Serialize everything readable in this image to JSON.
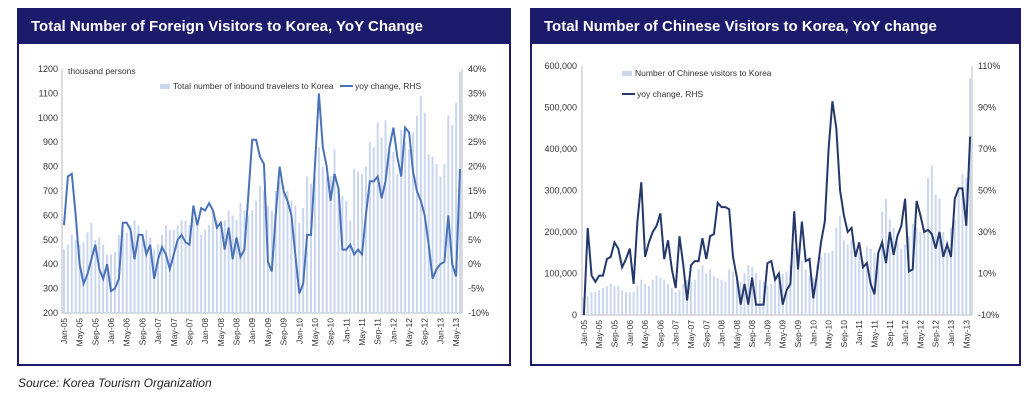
{
  "source": "Source: Korea Tourism Organization",
  "chart_data": [
    {
      "type": "bar+line",
      "title": "Total Number of Foreign Visitors to Korea, YoY Change",
      "unit_label": "thousand persons",
      "bar_series": "Total number of inbound travelers to Korea",
      "line_series": "yoy change, RHS",
      "ylim": [
        200,
        1200
      ],
      "yticks": [
        "1200",
        "1100",
        "1000",
        "900",
        "800",
        "700",
        "600",
        "500",
        "400",
        "300",
        "200"
      ],
      "y2lim": [
        -10,
        40
      ],
      "y2ticks": [
        "40%",
        "35%",
        "30%",
        "25%",
        "20%",
        "15%",
        "10%",
        "5%",
        "0%",
        "-5%",
        "-10%"
      ],
      "xticks": [
        "Jan-05",
        "May-05",
        "Sep-05",
        "Jan-06",
        "May-06",
        "Sep-06",
        "Jan-07",
        "May-07",
        "Sep-07",
        "Jan-08",
        "May-08",
        "Sep-08",
        "Jan-09",
        "May-09",
        "Sep-09",
        "Jan-10",
        "May-10",
        "Sep-10",
        "Jan-11",
        "May-11",
        "Sep-11",
        "Jan-12",
        "May-12",
        "Sep-12",
        "Jan-13",
        "May-13"
      ],
      "bars": [
        460,
        480,
        520,
        500,
        480,
        490,
        530,
        570,
        500,
        510,
        480,
        440,
        440,
        450,
        520,
        540,
        530,
        560,
        580,
        560,
        520,
        540,
        510,
        460,
        480,
        520,
        560,
        540,
        540,
        560,
        580,
        580,
        560,
        590,
        560,
        520,
        540,
        560,
        620,
        580,
        560,
        580,
        620,
        600,
        580,
        650,
        620,
        600,
        620,
        660,
        720,
        700,
        640,
        620,
        700,
        740,
        720,
        700,
        660,
        640,
        570,
        630,
        760,
        730,
        760,
        880,
        800,
        760,
        760,
        870,
        720,
        680,
        660,
        580,
        790,
        780,
        770,
        800,
        900,
        880,
        980,
        920,
        990,
        870,
        860,
        770,
        950,
        900,
        870,
        940,
        1010,
        1090,
        1020,
        850,
        840,
        810,
        760,
        810,
        1010,
        970,
        1060,
        1190
      ],
      "yoy": [
        8,
        18,
        18.5,
        10,
        0,
        -4,
        -2,
        1,
        4,
        -1,
        -3,
        0,
        -5.5,
        -5,
        -3,
        8.5,
        8.5,
        7,
        1,
        6,
        6,
        2,
        4,
        -3,
        1,
        3.5,
        2,
        -1,
        2,
        5,
        6,
        4.5,
        4,
        12,
        8,
        11.5,
        11,
        12.5,
        11,
        7.5,
        8.5,
        3,
        7.5,
        1,
        5.5,
        1.5,
        3,
        14,
        25.5,
        25.5,
        22,
        20.5,
        0.5,
        -1.5,
        10,
        20,
        15,
        13,
        10,
        2,
        -6,
        -4,
        6,
        6,
        20,
        35,
        24,
        20,
        13,
        18.5,
        15.5,
        3,
        3,
        4,
        2,
        3,
        2,
        10,
        17,
        17,
        18,
        13.5,
        17,
        24,
        28,
        22,
        18,
        28,
        27,
        19,
        15,
        13,
        10,
        4,
        -3,
        -1,
        0,
        0.5,
        10,
        0,
        -2.5,
        19.5
      ]
    },
    {
      "type": "bar+line",
      "title": "Total Number of Chinese Visitors to Korea, YoY change",
      "bar_series": "Number of Chinese visitors to Korea",
      "line_series": "yoy change, RHS",
      "ylim": [
        0,
        600000
      ],
      "yticks": [
        "600,000",
        "500,000",
        "400,000",
        "300,000",
        "200,000",
        "100,000",
        "0"
      ],
      "y2lim": [
        -10,
        110
      ],
      "y2ticks": [
        "110%",
        "90%",
        "70%",
        "50%",
        "30%",
        "10%",
        "-10%"
      ],
      "xticks": [
        "Jan-05",
        "May-05",
        "Sep-05",
        "Jan-06",
        "May-06",
        "Sep-06",
        "Jan-07",
        "May-07",
        "Sep-07",
        "Jan-08",
        "May-08",
        "Sep-08",
        "Jan-09",
        "May-09",
        "Sep-09",
        "Jan-10",
        "May-10",
        "Sep-10",
        "Jan-11",
        "May-11",
        "Sep-11",
        "Jan-12",
        "May-12",
        "Sep-12",
        "Jan-13",
        "May-13"
      ],
      "bars": [
        40000,
        45000,
        55000,
        55000,
        60000,
        65000,
        70000,
        75000,
        70000,
        70000,
        60000,
        55000,
        55000,
        55000,
        70000,
        85000,
        75000,
        70000,
        85000,
        95000,
        90000,
        85000,
        75000,
        65000,
        55000,
        60000,
        75000,
        85000,
        80000,
        85000,
        110000,
        120000,
        100000,
        110000,
        95000,
        90000,
        85000,
        80000,
        110000,
        105000,
        90000,
        80000,
        100000,
        120000,
        115000,
        100000,
        85000,
        80000,
        70000,
        75000,
        95000,
        95000,
        100000,
        105000,
        120000,
        160000,
        120000,
        130000,
        110000,
        95000,
        90000,
        120000,
        140000,
        150000,
        150000,
        155000,
        210000,
        240000,
        180000,
        170000,
        180000,
        145000,
        150000,
        130000,
        165000,
        160000,
        150000,
        150000,
        250000,
        280000,
        230000,
        210000,
        175000,
        160000,
        170000,
        190000,
        220000,
        210000,
        200000,
        210000,
        330000,
        360000,
        290000,
        280000,
        200000,
        180000,
        210000,
        230000,
        300000,
        340000,
        330000,
        570000
      ],
      "yoy": [
        -10,
        32,
        9,
        6,
        9,
        9,
        17,
        18,
        25,
        22,
        13,
        17,
        22,
        5,
        35,
        54,
        18,
        25,
        30,
        33,
        39,
        17,
        26,
        12,
        3,
        28,
        14,
        -3,
        14,
        16,
        16,
        27,
        17,
        28,
        29,
        44,
        42,
        42,
        41,
        18,
        8,
        -5,
        5,
        -5,
        8,
        -5,
        -5,
        -5,
        15,
        16,
        7,
        10,
        -5,
        2,
        5,
        40,
        12,
        35,
        16,
        17,
        -2,
        10,
        25,
        35,
        70,
        93,
        80,
        50,
        38,
        30,
        32,
        18,
        25,
        13,
        15,
        5,
        0,
        20,
        25,
        15,
        30,
        19,
        28,
        33,
        46,
        11,
        12,
        45,
        38,
        30,
        31,
        29,
        22,
        30,
        18,
        24,
        18,
        46,
        51,
        51,
        33,
        76
      ]
    }
  ]
}
